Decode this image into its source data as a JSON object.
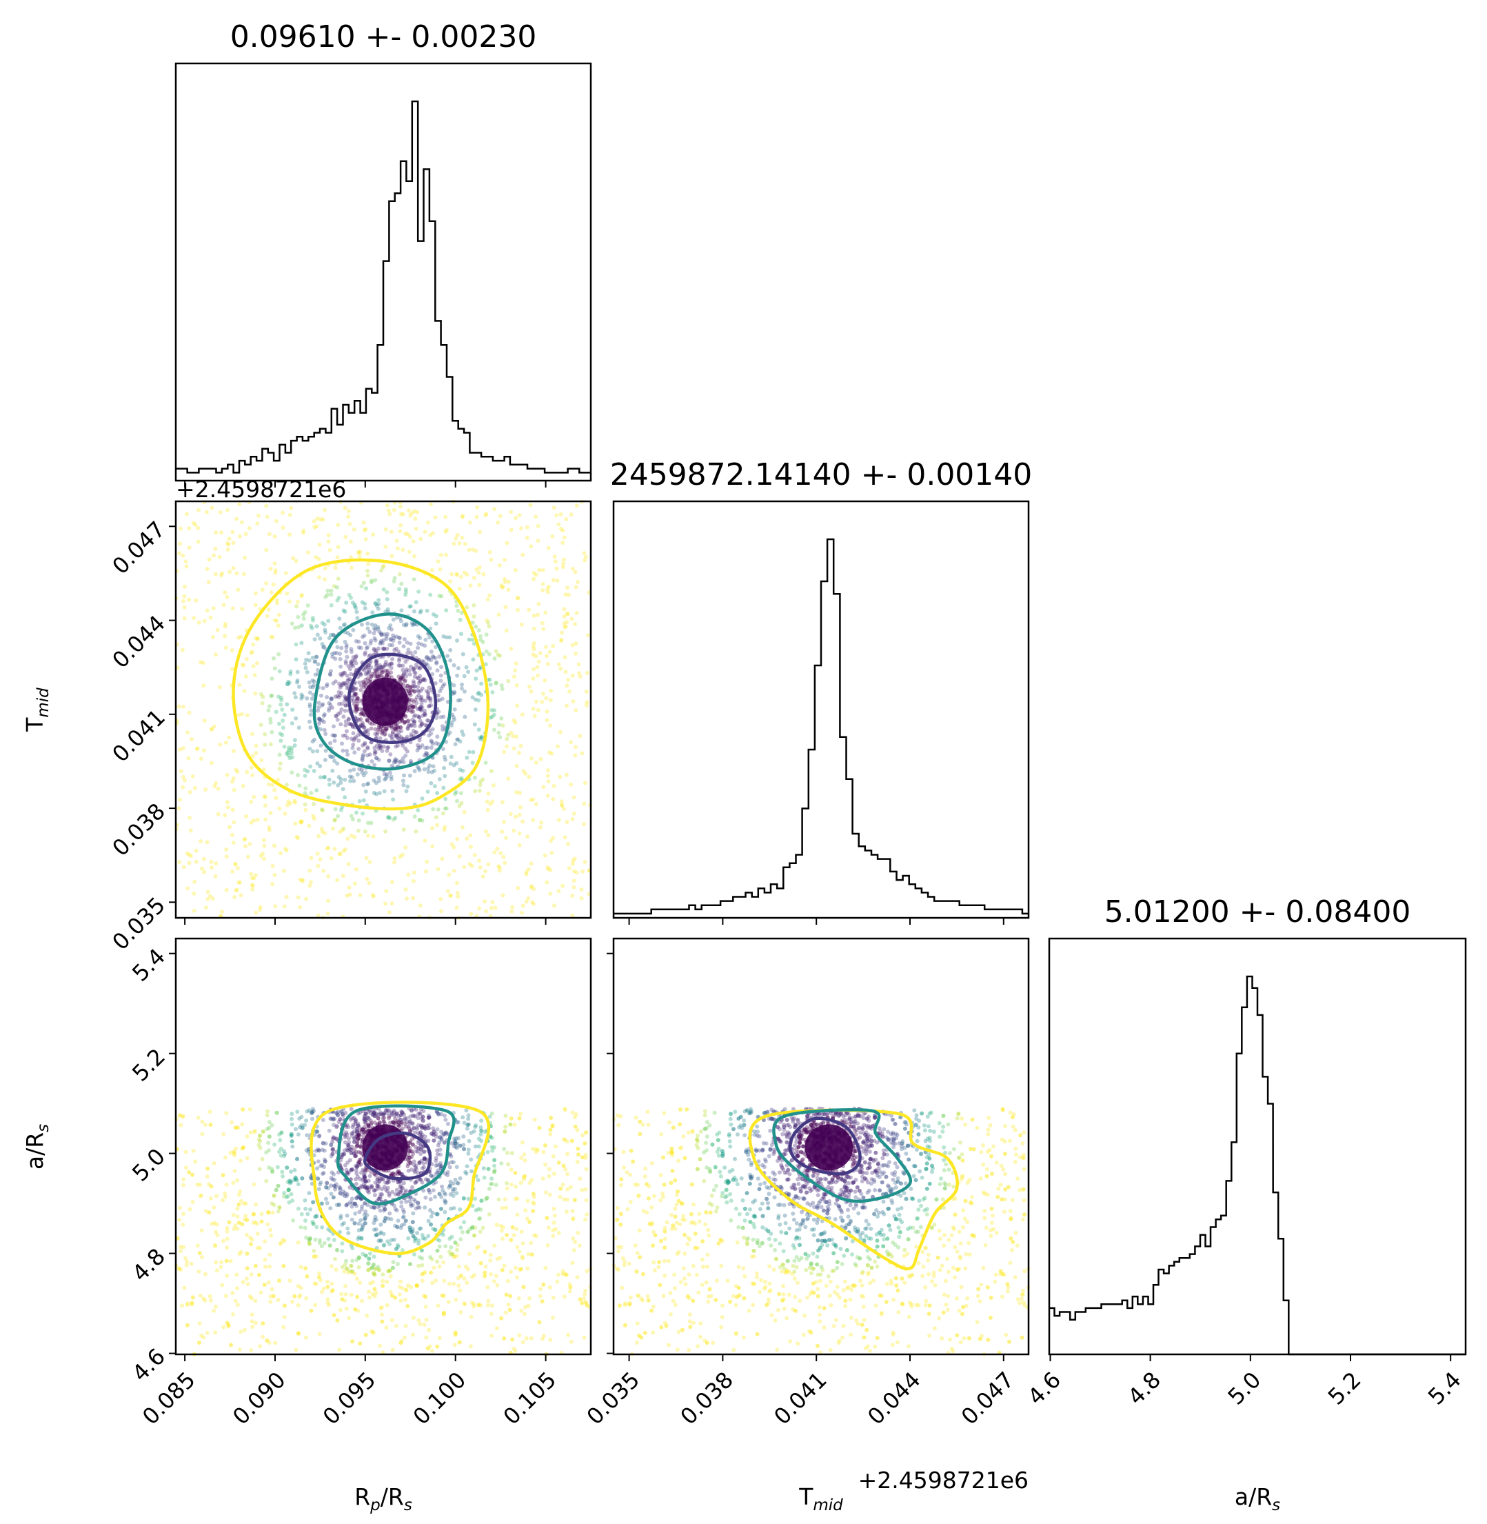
{
  "chart_data": {
    "type": "corner",
    "parameters": [
      {
        "key": "rp",
        "label_base": "R",
        "label_sub": "p",
        "label_rest": "/R",
        "label_sub2": "s",
        "title": "0.09610 +- 0.00230",
        "range": [
          0.0845,
          0.1075
        ],
        "ticks": [
          0.085,
          0.09,
          0.095,
          0.1,
          0.105
        ],
        "tick_labels": [
          "0.085",
          "0.090",
          "0.095",
          "0.100",
          "0.105"
        ],
        "mean": 0.0961,
        "std": 0.0023
      },
      {
        "key": "tmid",
        "label_base": "T",
        "label_sub": "mid",
        "label_rest": "",
        "label_sub2": "",
        "title": "2459872.14140 +- 0.00140",
        "offset_text": "+2.4598721e6",
        "range": [
          0.0345,
          0.0478
        ],
        "ticks": [
          0.035,
          0.038,
          0.041,
          0.044,
          0.047
        ],
        "tick_labels": [
          "0.035",
          "0.038",
          "0.041",
          "0.044",
          "0.047"
        ],
        "mean": 0.0414,
        "std": 0.0014
      },
      {
        "key": "ars",
        "label_base": "a/R",
        "label_sub": "s",
        "label_rest": "",
        "label_sub2": "",
        "title": "5.01200 +- 0.08400",
        "range": [
          4.598,
          5.43
        ],
        "ticks": [
          4.6,
          4.8,
          5.0,
          5.2,
          5.4
        ],
        "tick_labels": [
          "4.6",
          "4.8",
          "5.0",
          "5.2",
          "5.4"
        ],
        "mean": 5.012,
        "std": 0.084
      }
    ],
    "histograms": {
      "rp": [
        3,
        3,
        2,
        2,
        3,
        3,
        3,
        2,
        3,
        4,
        2,
        5,
        4,
        6,
        5,
        8,
        7,
        5,
        9,
        7,
        10,
        11,
        10,
        11,
        12,
        13,
        12,
        18,
        14,
        19,
        17,
        20,
        17,
        23,
        22,
        34,
        55,
        70,
        72,
        80,
        75,
        95,
        60,
        78,
        65,
        40,
        34,
        26,
        15,
        13,
        12,
        7,
        7,
        6,
        6,
        5,
        5,
        6,
        4,
        4,
        4,
        3,
        3,
        3,
        2,
        2,
        2,
        2,
        3,
        3,
        2,
        2
      ],
      "tmid": [
        1,
        1,
        1,
        1,
        1,
        1,
        2,
        2,
        2,
        2,
        2,
        2,
        3,
        2,
        3,
        3,
        3,
        4,
        4,
        5,
        5,
        6,
        5,
        7,
        6,
        8,
        7,
        12,
        13,
        15,
        26,
        40,
        60,
        80,
        90,
        77,
        43,
        33,
        20,
        17,
        16,
        15,
        14,
        14,
        11,
        9,
        10,
        8,
        7,
        6,
        5,
        4,
        4,
        4,
        4,
        3,
        3,
        3,
        3,
        2,
        2,
        2,
        2,
        2,
        2,
        1
      ],
      "ars": [
        12,
        10,
        11,
        11,
        9,
        11,
        11,
        12,
        12,
        12,
        13,
        13,
        13,
        13,
        14,
        12,
        15,
        13,
        15,
        13,
        18,
        22,
        21,
        23,
        24,
        25,
        25,
        26,
        28,
        31,
        28,
        33,
        35,
        36,
        45,
        55,
        78,
        90,
        98,
        95,
        88,
        72,
        65,
        42,
        30,
        14,
        0,
        0,
        0,
        0,
        0,
        0,
        0,
        0,
        0,
        0,
        0,
        0,
        0,
        0,
        0,
        0,
        0,
        0,
        0,
        0,
        0,
        0,
        0,
        0,
        0,
        0,
        0,
        0,
        0,
        0,
        0,
        0,
        0,
        0
      ]
    },
    "contours": {
      "tmid_vs_rp": [
        {
          "level": "outer",
          "color": "#fde725",
          "points": [
            [
              0.0877,
              0.0419
            ],
            [
              0.0888,
              0.0439
            ],
            [
              0.0918,
              0.0456
            ],
            [
              0.0958,
              0.0459
            ],
            [
              0.0993,
              0.0452
            ],
            [
              0.101,
              0.0436
            ],
            [
              0.1018,
              0.0414
            ],
            [
              0.1012,
              0.0394
            ],
            [
              0.0993,
              0.0384
            ],
            [
              0.0972,
              0.038
            ],
            [
              0.094,
              0.0381
            ],
            [
              0.0907,
              0.0386
            ],
            [
              0.0884,
              0.0398
            ]
          ]
        },
        {
          "level": "middle",
          "color": "#21918c",
          "points": [
            [
              0.0922,
              0.0413
            ],
            [
              0.0933,
              0.0434
            ],
            [
              0.0962,
              0.0442
            ],
            [
              0.0986,
              0.0436
            ],
            [
              0.0997,
              0.0419
            ],
            [
              0.0992,
              0.04
            ],
            [
              0.097,
              0.0393
            ],
            [
              0.0945,
              0.0394
            ],
            [
              0.0927,
              0.0401
            ]
          ]
        },
        {
          "level": "inner",
          "color": "#443983",
          "points": [
            [
              0.0941,
              0.0416
            ],
            [
              0.0951,
              0.0427
            ],
            [
              0.0967,
              0.0429
            ],
            [
              0.0983,
              0.0425
            ],
            [
              0.0989,
              0.0413
            ],
            [
              0.0982,
              0.0404
            ],
            [
              0.0965,
              0.0401
            ],
            [
              0.0948,
              0.0404
            ]
          ]
        }
      ],
      "ars_vs_rp": [
        {
          "level": "outer",
          "color": "#fde725",
          "points": [
            [
              0.093,
              5.085
            ],
            [
              0.0922,
              4.94
            ],
            [
              0.0934,
              4.84
            ],
            [
              0.0965,
              4.8
            ],
            [
              0.0985,
              4.82
            ],
            [
              0.0995,
              4.86
            ],
            [
              0.1007,
              4.89
            ],
            [
              0.101,
              4.95
            ],
            [
              0.1013,
              5.085
            ]
          ]
        },
        {
          "level": "middle",
          "color": "#21918c",
          "points": [
            [
              0.0945,
              5.085
            ],
            [
              0.0935,
              4.99
            ],
            [
              0.094,
              4.95
            ],
            [
              0.0955,
              4.9
            ],
            [
              0.0975,
              4.92
            ],
            [
              0.0992,
              4.96
            ],
            [
              0.0996,
              5.02
            ],
            [
              0.0995,
              5.085
            ]
          ]
        },
        {
          "level": "inner",
          "color": "#443983",
          "points": [
            [
              0.095,
              4.99
            ],
            [
              0.0958,
              5.03
            ],
            [
              0.0973,
              5.04
            ],
            [
              0.0985,
              5.01
            ],
            [
              0.0983,
              4.96
            ],
            [
              0.0966,
              4.95
            ],
            [
              0.0953,
              4.97
            ]
          ]
        }
      ],
      "ars_vs_tmid": [
        {
          "level": "outer",
          "color": "#fde725",
          "points": [
            [
              0.0394,
              5.075
            ],
            [
              0.039,
              4.99
            ],
            [
              0.0401,
              4.91
            ],
            [
              0.0415,
              4.86
            ],
            [
              0.0432,
              4.79
            ],
            [
              0.044,
              4.77
            ],
            [
              0.0443,
              4.81
            ],
            [
              0.0448,
              4.88
            ],
            [
              0.0455,
              4.93
            ],
            [
              0.0452,
              4.99
            ],
            [
              0.0441,
              5.02
            ],
            [
              0.0436,
              5.08
            ]
          ]
        },
        {
          "level": "middle",
          "color": "#21918c",
          "points": [
            [
              0.04,
              5.075
            ],
            [
              0.0397,
              5.02
            ],
            [
              0.0403,
              4.97
            ],
            [
              0.0418,
              4.91
            ],
            [
              0.043,
              4.91
            ],
            [
              0.044,
              4.94
            ],
            [
              0.0436,
              4.99
            ],
            [
              0.0429,
              5.04
            ],
            [
              0.0428,
              5.085
            ]
          ]
        },
        {
          "level": "inner",
          "color": "#443983",
          "points": [
            [
              0.0403,
              5.04
            ],
            [
              0.041,
              5.07
            ],
            [
              0.042,
              5.05
            ],
            [
              0.0424,
              4.99
            ],
            [
              0.0419,
              4.96
            ],
            [
              0.0408,
              4.97
            ],
            [
              0.0402,
              5.0
            ]
          ]
        }
      ]
    },
    "colors": {
      "cmap": [
        "#fde725",
        "#b5de2b",
        "#6ece58",
        "#35b779",
        "#1f9e89",
        "#26828e",
        "#31688e",
        "#3e4989",
        "#482878",
        "#440154"
      ],
      "hist_line": "#000000",
      "axes": "#000000"
    },
    "ars_upper_cutoff": 5.09,
    "grid": false,
    "legend": "none"
  }
}
